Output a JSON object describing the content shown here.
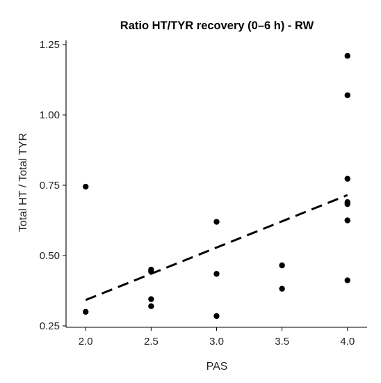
{
  "chart_data": {
    "type": "scatter",
    "title": "Ratio HT/TYR recovery (0–6 h) - RW",
    "xlabel": "PAS",
    "ylabel": "Total HT / Total TYR",
    "xlim": [
      1.85,
      4.15
    ],
    "ylim": [
      0.245,
      1.265
    ],
    "xticks": [
      2.0,
      2.5,
      3.0,
      3.5,
      4.0
    ],
    "xtick_labels": [
      "2.0",
      "2.5",
      "3.0",
      "3.5",
      "4.0"
    ],
    "yticks": [
      0.25,
      0.5,
      0.75,
      1.0,
      1.25
    ],
    "ytick_labels": [
      "0.25",
      "0.50",
      "0.75",
      "1.00",
      "1.25"
    ],
    "grid": false,
    "legend": "none",
    "series": [
      {
        "points": [
          {
            "x": 2.0,
            "y": 0.745
          },
          {
            "x": 2.0,
            "y": 0.3
          },
          {
            "x": 2.5,
            "y": 0.45
          },
          {
            "x": 2.5,
            "y": 0.443
          },
          {
            "x": 2.5,
            "y": 0.345
          },
          {
            "x": 2.5,
            "y": 0.32
          },
          {
            "x": 3.0,
            "y": 0.62
          },
          {
            "x": 3.0,
            "y": 0.435
          },
          {
            "x": 3.0,
            "y": 0.285
          },
          {
            "x": 3.5,
            "y": 0.465
          },
          {
            "x": 3.5,
            "y": 0.382
          },
          {
            "x": 4.0,
            "y": 1.21
          },
          {
            "x": 4.0,
            "y": 1.07
          },
          {
            "x": 4.0,
            "y": 0.773
          },
          {
            "x": 4.0,
            "y": 0.69
          },
          {
            "x": 4.0,
            "y": 0.683
          },
          {
            "x": 4.0,
            "y": 0.625
          },
          {
            "x": 4.0,
            "y": 0.412
          }
        ]
      }
    ],
    "trendline": {
      "style": "dashed",
      "points": [
        {
          "x": 2.0,
          "y": 0.342
        },
        {
          "x": 4.0,
          "y": 0.715
        }
      ]
    },
    "colors": {
      "points": "#000000",
      "trendline": "#000000",
      "axes": "#000000",
      "text": "#222222"
    }
  }
}
